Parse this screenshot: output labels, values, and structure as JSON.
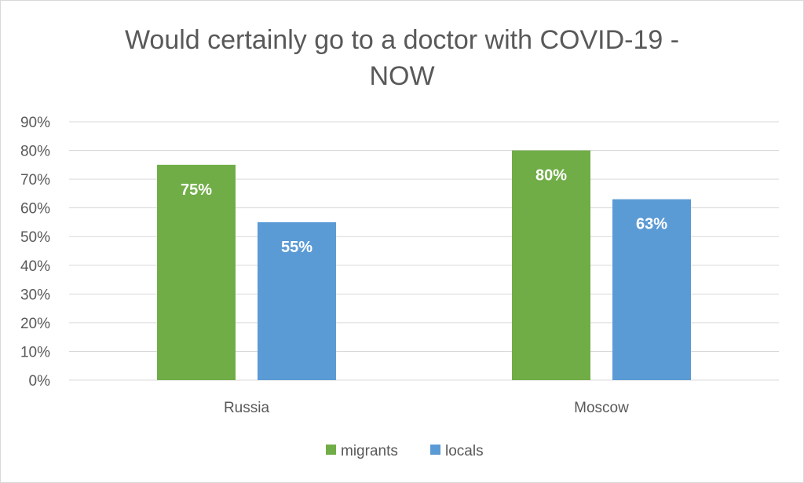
{
  "chart_data": {
    "type": "bar",
    "title_lines": [
      "Would certainly go to a doctor with COVID-19 -",
      "NOW"
    ],
    "categories": [
      "Russia",
      "Moscow"
    ],
    "series": [
      {
        "name": "migrants",
        "values": [
          75,
          80
        ],
        "labels": [
          "75%",
          "80%"
        ],
        "color": "#70ad47"
      },
      {
        "name": "locals",
        "values": [
          55,
          63
        ],
        "labels": [
          "55%",
          "63%"
        ],
        "color": "#5b9bd5"
      }
    ],
    "y_ticks": [
      "0%",
      "10%",
      "20%",
      "30%",
      "40%",
      "50%",
      "60%",
      "70%",
      "80%",
      "90%"
    ],
    "ylim": [
      0,
      90
    ],
    "grid": true,
    "legend_position": "bottom",
    "gridline_color": "#d9d9d9"
  }
}
